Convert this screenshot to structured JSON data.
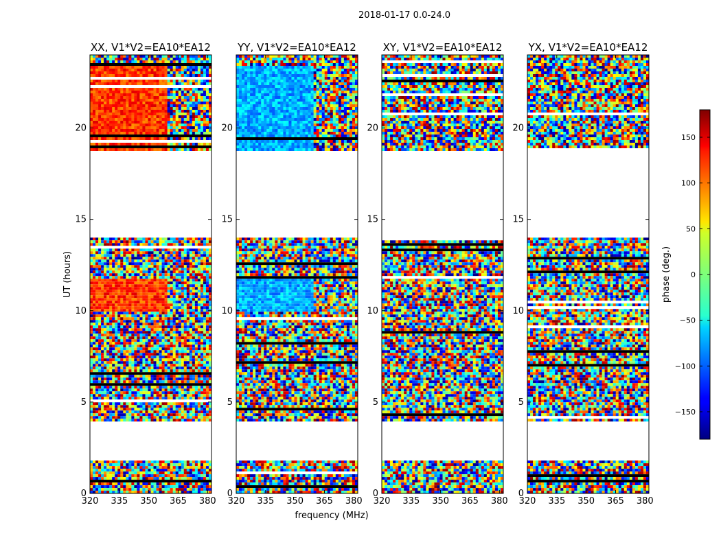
{
  "chart_data": {
    "type": "heatmap",
    "title": "2018-01-17 0.0-24.0",
    "xlabel": "frequency (MHz)",
    "ylabel": "UT (hours)",
    "xlim": [
      320,
      382
    ],
    "ylim": [
      0,
      24
    ],
    "xticks": [
      320,
      335,
      350,
      365,
      380
    ],
    "yticks": [
      0,
      5,
      10,
      15,
      20
    ],
    "panels": [
      {
        "title": "XX, V1*V2=EA10*EA12",
        "pol": "XX"
      },
      {
        "title": "YY, V1*V2=EA10*EA12",
        "pol": "YY"
      },
      {
        "title": "XY, V1*V2=EA10*EA12",
        "pol": "XY"
      },
      {
        "title": "YX, V1*V2=EA10*EA12",
        "pol": "YX"
      }
    ],
    "data_segments_hours": [
      {
        "start": 0.1,
        "end": 1.8
      },
      {
        "start": 4.0,
        "end": 14.0
      },
      {
        "start": 18.8,
        "end": 24.0
      }
    ],
    "colorbar": {
      "label": "phase (deg.)",
      "range": [
        -180,
        180
      ],
      "ticks": [
        -150,
        -100,
        -50,
        0,
        50,
        100,
        150
      ],
      "colormap": "jet"
    }
  }
}
